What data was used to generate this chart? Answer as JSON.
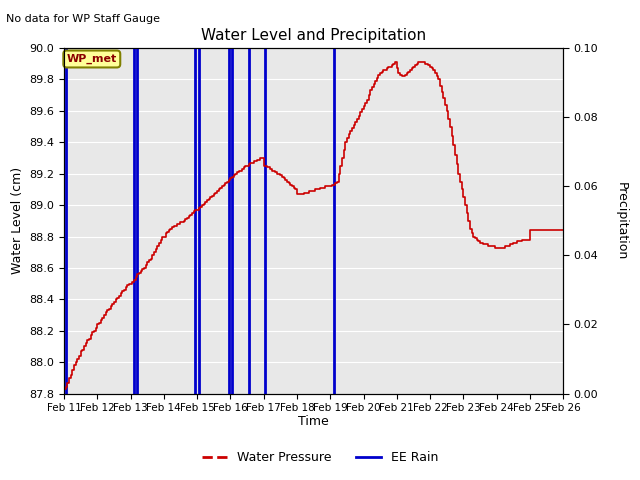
{
  "title": "Water Level and Precipitation",
  "top_left_text": "No data for WP Staff Gauge",
  "xlabel": "Time",
  "ylabel_left": "Water Level (cm)",
  "ylabel_right": "Precipitation",
  "annotation_label": "WP_met",
  "ylim_left": [
    87.8,
    90.0
  ],
  "ylim_right": [
    0.0,
    0.1
  ],
  "yticks_left": [
    87.8,
    88.0,
    88.2,
    88.4,
    88.6,
    88.8,
    89.0,
    89.2,
    89.4,
    89.6,
    89.8,
    90.0
  ],
  "yticks_right": [
    0.0,
    0.02,
    0.04,
    0.06,
    0.08,
    0.1
  ],
  "xtick_labels": [
    "Feb 11",
    "Feb 12",
    "Feb 13",
    "Feb 14",
    "Feb 15",
    "Feb 16",
    "Feb 17",
    "Feb 18",
    "Feb 19",
    "Feb 20",
    "Feb 21",
    "Feb 22",
    "Feb 23",
    "Feb 24",
    "Feb 25",
    "Feb 26"
  ],
  "background_color": "#e8e8e8",
  "line_color_water": "#cc0000",
  "line_color_rain": "#0000cc",
  "legend_water": "Water Pressure",
  "legend_rain": "EE Rain",
  "rain_lines_x": [
    11.05,
    13.1,
    13.2,
    14.95,
    15.05,
    15.95,
    16.05,
    16.55,
    17.05,
    19.1
  ],
  "water_x": [
    11.0,
    11.05,
    11.1,
    11.15,
    11.2,
    11.25,
    11.3,
    11.35,
    11.4,
    11.45,
    11.5,
    11.55,
    11.6,
    11.65,
    11.7,
    11.75,
    11.8,
    11.85,
    11.9,
    11.95,
    12.0,
    12.05,
    12.1,
    12.15,
    12.2,
    12.25,
    12.3,
    12.35,
    12.4,
    12.45,
    12.5,
    12.55,
    12.6,
    12.65,
    12.7,
    12.75,
    12.8,
    12.85,
    12.9,
    12.95,
    13.0,
    13.05,
    13.1,
    13.15,
    13.2,
    13.25,
    13.3,
    13.35,
    13.4,
    13.45,
    13.5,
    13.55,
    13.6,
    13.65,
    13.7,
    13.75,
    13.8,
    13.85,
    13.9,
    13.95,
    14.0,
    14.05,
    14.1,
    14.15,
    14.2,
    14.25,
    14.3,
    14.35,
    14.4,
    14.45,
    14.5,
    14.55,
    14.6,
    14.65,
    14.7,
    14.75,
    14.8,
    14.85,
    14.9,
    14.95,
    15.0,
    15.05,
    15.1,
    15.15,
    15.2,
    15.25,
    15.3,
    15.35,
    15.4,
    15.45,
    15.5,
    15.55,
    15.6,
    15.65,
    15.7,
    15.75,
    15.8,
    15.85,
    15.9,
    15.95,
    16.0,
    16.05,
    16.1,
    16.15,
    16.2,
    16.25,
    16.3,
    16.35,
    16.4,
    16.45,
    16.5,
    16.55,
    16.6,
    16.65,
    16.7,
    16.75,
    16.8,
    16.85,
    16.9,
    16.95,
    17.0,
    17.05,
    17.1,
    17.15,
    17.2,
    17.25,
    17.3,
    17.35,
    17.4,
    17.45,
    17.5,
    17.55,
    17.6,
    17.65,
    17.7,
    17.75,
    17.8,
    17.85,
    17.9,
    17.95,
    18.0,
    18.05,
    18.1,
    18.15,
    18.2,
    18.25,
    18.3,
    18.35,
    18.4,
    18.45,
    18.5,
    18.55,
    18.6,
    18.65,
    18.7,
    18.75,
    18.8,
    18.85,
    18.9,
    18.95,
    19.0,
    19.05,
    19.1,
    19.15,
    19.2,
    19.25,
    19.3,
    19.35,
    19.4,
    19.45,
    19.5,
    19.55,
    19.6,
    19.65,
    19.7,
    19.75,
    19.8,
    19.85,
    19.9,
    19.95,
    20.0,
    20.05,
    20.1,
    20.15,
    20.2,
    20.25,
    20.3,
    20.35,
    20.4,
    20.45,
    20.5,
    20.55,
    20.6,
    20.65,
    20.7,
    20.75,
    20.8,
    20.85,
    20.9,
    20.95,
    21.0,
    21.05,
    21.1,
    21.15,
    21.2,
    21.25,
    21.3,
    21.35,
    21.4,
    21.45,
    21.5,
    21.55,
    21.6,
    21.65,
    21.7,
    21.75,
    21.8,
    21.85,
    21.9,
    21.95,
    22.0,
    22.05,
    22.1,
    22.15,
    22.2,
    22.25,
    22.3,
    22.35,
    22.4,
    22.45,
    22.5,
    22.55,
    22.6,
    22.65,
    22.7,
    22.75,
    22.8,
    22.85,
    22.9,
    22.95,
    23.0,
    23.05,
    23.1,
    23.15,
    23.2,
    23.25,
    23.3,
    23.35,
    23.4,
    23.45,
    23.5,
    23.55,
    23.6,
    23.65,
    23.7,
    23.75,
    23.8,
    23.85,
    23.9,
    23.95,
    24.0,
    24.05,
    24.1,
    24.15,
    24.2,
    24.25,
    24.3,
    24.35,
    24.4,
    24.45,
    24.5,
    24.55,
    24.6,
    24.65,
    24.7,
    24.75,
    24.8,
    24.85,
    24.9,
    24.95,
    25.0,
    25.05,
    25.1,
    25.15,
    25.2,
    25.25,
    25.3,
    25.35,
    25.4,
    25.45,
    25.5,
    25.55,
    25.6,
    25.65,
    25.7,
    25.75,
    25.8,
    25.85,
    25.9,
    25.95,
    26.0
  ],
  "water_y": [
    87.83,
    87.84,
    87.87,
    87.9,
    87.92,
    87.95,
    87.98,
    88.0,
    88.02,
    88.04,
    88.07,
    88.08,
    88.1,
    88.12,
    88.14,
    88.15,
    88.17,
    88.19,
    88.2,
    88.22,
    88.24,
    88.25,
    88.27,
    88.28,
    88.3,
    88.32,
    88.33,
    88.34,
    88.36,
    88.37,
    88.38,
    88.4,
    88.41,
    88.42,
    88.44,
    88.45,
    88.46,
    88.48,
    88.49,
    88.5,
    88.5,
    88.51,
    88.52,
    88.54,
    88.56,
    88.57,
    88.58,
    88.59,
    88.6,
    88.62,
    88.64,
    88.65,
    88.66,
    88.68,
    88.7,
    88.72,
    88.74,
    88.76,
    88.78,
    88.8,
    88.8,
    88.82,
    88.83,
    88.84,
    88.85,
    88.86,
    88.87,
    88.87,
    88.88,
    88.88,
    88.89,
    88.89,
    88.9,
    88.91,
    88.92,
    88.93,
    88.94,
    88.95,
    88.96,
    88.97,
    88.97,
    88.98,
    88.99,
    89.0,
    89.01,
    89.02,
    89.03,
    89.04,
    89.05,
    89.06,
    89.07,
    89.08,
    89.09,
    89.1,
    89.11,
    89.12,
    89.13,
    89.14,
    89.15,
    89.16,
    89.17,
    89.18,
    89.19,
    89.2,
    89.21,
    89.22,
    89.22,
    89.23,
    89.24,
    89.25,
    89.25,
    89.26,
    89.27,
    89.27,
    89.28,
    89.28,
    89.29,
    89.29,
    89.3,
    89.3,
    89.25,
    89.25,
    89.24,
    89.24,
    89.23,
    89.22,
    89.22,
    89.21,
    89.2,
    89.2,
    89.19,
    89.18,
    89.17,
    89.16,
    89.15,
    89.14,
    89.13,
    89.12,
    89.11,
    89.1,
    89.07,
    89.07,
    89.07,
    89.07,
    89.08,
    89.08,
    89.08,
    89.09,
    89.09,
    89.09,
    89.09,
    89.1,
    89.1,
    89.1,
    89.11,
    89.11,
    89.11,
    89.12,
    89.12,
    89.12,
    89.12,
    89.13,
    89.13,
    89.14,
    89.15,
    89.2,
    89.25,
    89.3,
    89.35,
    89.4,
    89.43,
    89.45,
    89.47,
    89.49,
    89.51,
    89.53,
    89.55,
    89.57,
    89.59,
    89.61,
    89.63,
    89.65,
    89.67,
    89.7,
    89.73,
    89.75,
    89.77,
    89.79,
    89.81,
    89.83,
    89.84,
    89.85,
    89.86,
    89.86,
    89.87,
    89.88,
    89.88,
    89.89,
    89.9,
    89.91,
    89.87,
    89.84,
    89.83,
    89.82,
    89.82,
    89.83,
    89.84,
    89.85,
    89.86,
    89.87,
    89.88,
    89.89,
    89.9,
    89.91,
    89.91,
    89.91,
    89.91,
    89.9,
    89.9,
    89.89,
    89.88,
    89.87,
    89.86,
    89.84,
    89.82,
    89.8,
    89.76,
    89.72,
    89.68,
    89.64,
    89.6,
    89.55,
    89.5,
    89.44,
    89.38,
    89.32,
    89.26,
    89.2,
    89.15,
    89.1,
    89.05,
    89.0,
    88.95,
    88.9,
    88.85,
    88.82,
    88.8,
    88.79,
    88.78,
    88.77,
    88.76,
    88.76,
    88.75,
    88.75,
    88.75,
    88.74,
    88.74,
    88.74,
    88.74,
    88.73,
    88.73,
    88.73,
    88.73,
    88.73,
    88.73,
    88.74,
    88.74,
    88.74,
    88.75,
    88.75,
    88.76,
    88.76,
    88.77,
    88.77,
    88.77,
    88.78,
    88.78,
    88.78,
    88.78,
    88.78,
    88.84,
    88.84,
    88.84,
    88.84,
    88.84,
    88.84,
    88.84,
    88.84,
    88.84,
    88.84,
    88.84,
    88.84,
    88.84,
    88.84,
    88.84,
    88.84,
    88.84,
    88.84,
    88.84,
    88.84,
    88.84
  ]
}
